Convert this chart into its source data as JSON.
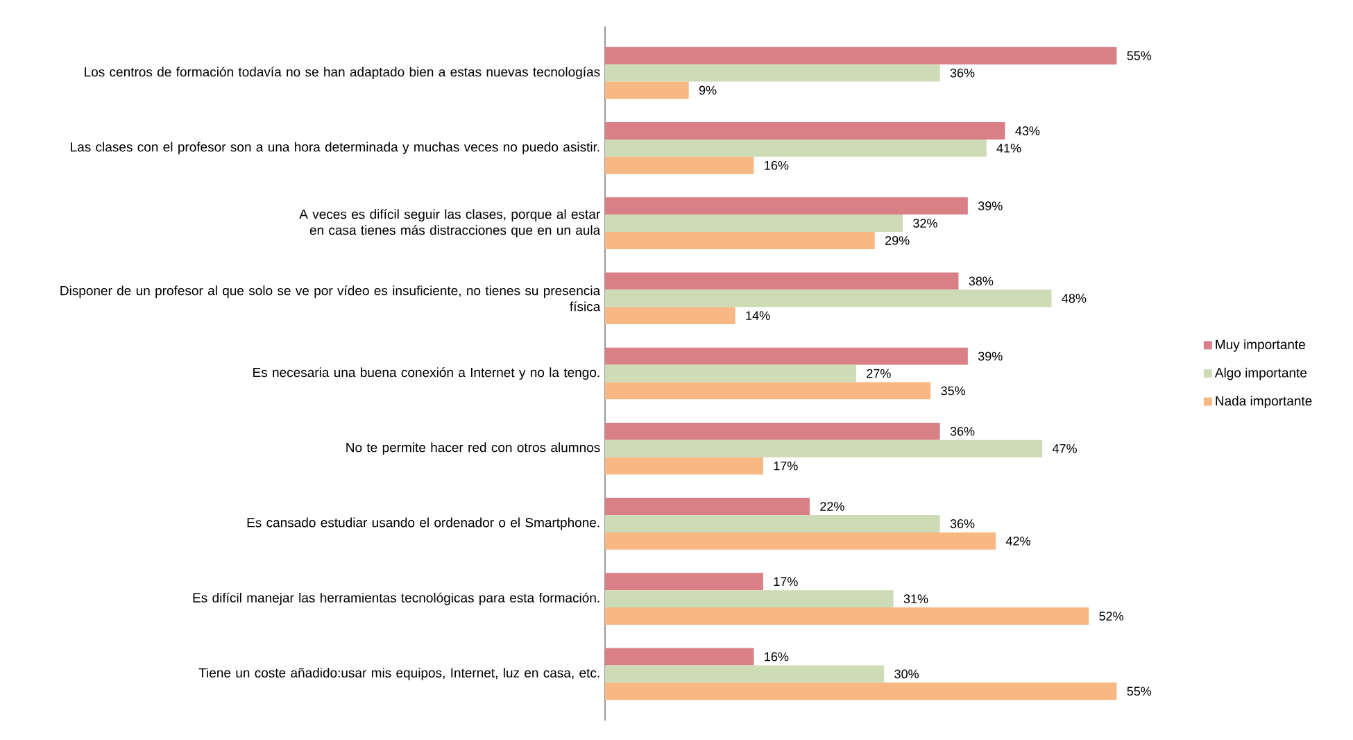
{
  "chart_data": {
    "type": "bar",
    "orientation": "horizontal",
    "legend": "right",
    "categories": [
      "Los centros de formación todavía no se han adaptado bien a estas nuevas tecnologías",
      "Las clases con el profesor son a una hora determinada y muchas veces no puedo asistir.",
      "A veces es difícil seguir las clases, porque al estar en casa tienes más distracciones que en un aula",
      "Disponer de un profesor al que solo se ve por vídeo es insuficiente, no tienes su presencia física",
      "Es necesaria una buena conexión a Internet y no la tengo.",
      "No te permite hacer red con otros alumnos",
      "Es cansado estudiar usando el ordenador o el Smartphone.",
      "Es difícil manejar las herramientas tecnológicas para esta formación.",
      "Tiene un coste añadido:usar mis equipos, Internet, luz en casa, etc."
    ],
    "series": [
      {
        "name": "Muy importante",
        "color": "#d98087",
        "values": [
          55,
          43,
          39,
          38,
          39,
          36,
          22,
          17,
          16
        ],
        "value_labels": [
          "55%",
          "43%",
          "39%",
          "38%",
          "39%",
          "36%",
          "22%",
          "17%",
          "16%"
        ]
      },
      {
        "name": "Algo importante",
        "color": "#cddcb6",
        "values": [
          36,
          41,
          32,
          48,
          27,
          47,
          36,
          31,
          30
        ],
        "value_labels": [
          "36%",
          "41%",
          "32%",
          "48%",
          "27%",
          "47%",
          "36%",
          "31%",
          "30%"
        ]
      },
      {
        "name": "Nada importante",
        "color": "#f7b883",
        "values": [
          9,
          16,
          29,
          14,
          35,
          17,
          42,
          52,
          55
        ],
        "value_labels": [
          "9%",
          "16%",
          "29%",
          "14%",
          "35%",
          "17%",
          "42%",
          "52%",
          "55%"
        ]
      }
    ]
  }
}
